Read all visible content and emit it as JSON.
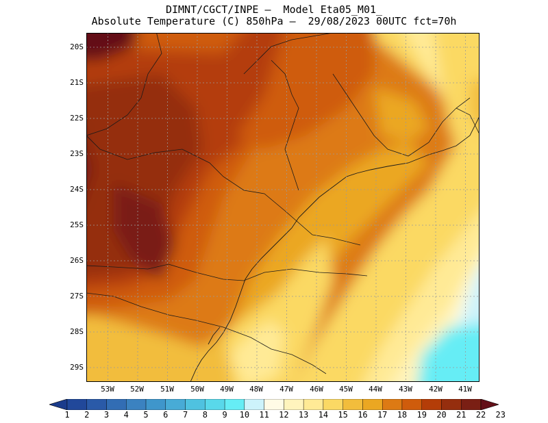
{
  "header": {
    "line1": "DIMNT/CGCT/INPE –  Model Eta05_M01_",
    "line2": "Absolute Temperature (C) 850hPa –  29/08/2023 00UTC fct=70h"
  },
  "map": {
    "region": "Southern Brazil",
    "lat_labels": [
      "20S",
      "21S",
      "22S",
      "23S",
      "24S",
      "25S",
      "26S",
      "27S",
      "28S",
      "29S"
    ],
    "lon_labels": [
      "53W",
      "52W",
      "51W",
      "50W",
      "49W",
      "48W",
      "47W",
      "46W",
      "45W",
      "44W",
      "43W",
      "42W",
      "41W"
    ],
    "lat_range": [
      -29.4,
      -19.6
    ],
    "lon_range": [
      -53.8,
      -40.6
    ],
    "units": "C",
    "level": "850hPa"
  },
  "colorbar": {
    "labels": [
      "1",
      "2",
      "3",
      "4",
      "5",
      "6",
      "7",
      "8",
      "9",
      "10",
      "11",
      "12",
      "13",
      "14",
      "15",
      "16",
      "17",
      "18",
      "19",
      "20",
      "21",
      "22",
      "23"
    ],
    "colors": [
      "#1b3c8c",
      "#21489a",
      "#2a5aa8",
      "#326db4",
      "#3b82c0",
      "#3f96cb",
      "#48abd6",
      "#4fc2e0",
      "#59d8ea",
      "#66edf5",
      "#cdf3fb",
      "#fffbe6",
      "#fff4bd",
      "#ffea96",
      "#fbd964",
      "#f2bd3c",
      "#eba722",
      "#dd7a14",
      "#cf5c0c",
      "#b43d08",
      "#952e0e",
      "#7a1f14",
      "#641018"
    ]
  }
}
